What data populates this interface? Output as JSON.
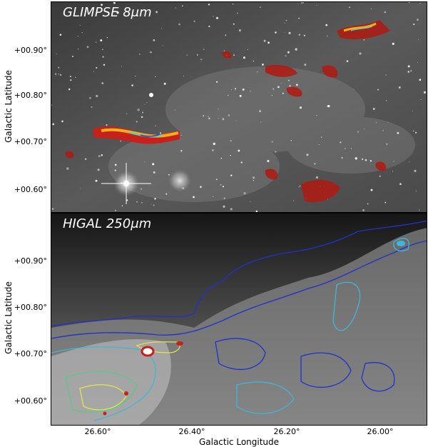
{
  "panels": [
    {
      "title": "GLIMPSE 8μm",
      "ylabel": "Galactic Latitude",
      "yticks": [
        "+00.90°",
        "+00.80°",
        "+00.70°",
        "+00.60°"
      ]
    },
    {
      "title": "HIGAL 250μm",
      "ylabel": "Galactic Latitude",
      "yticks": [
        "+00.90°",
        "+00.80°",
        "+00.70°",
        "+00.60°"
      ]
    }
  ],
  "xaxis": {
    "label": "Galactic Longitude",
    "ticks": [
      "26.60°",
      "26.40°",
      "26.20°",
      "26.00°"
    ]
  },
  "colors": {
    "background_dark": "#1a1a1a",
    "contour_blue": "#2231c9",
    "contour_cyan": "#3fb7d8",
    "contour_yellow": "#e3e34a",
    "hot_red": "#c8201a"
  }
}
